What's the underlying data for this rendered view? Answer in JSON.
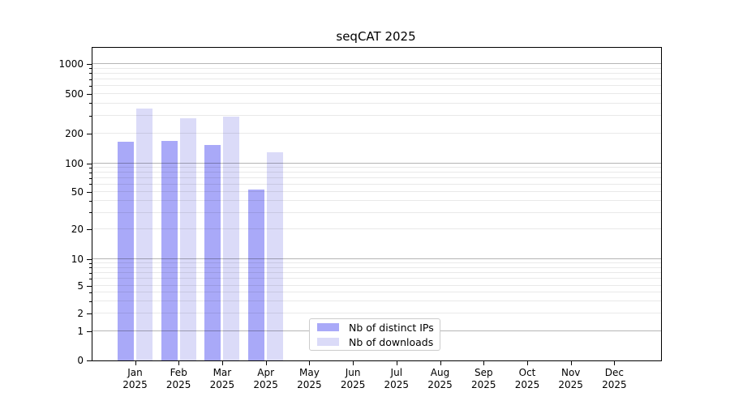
{
  "chart_data": {
    "type": "bar",
    "title": "seqCAT 2025",
    "xlabel": "",
    "ylabel": "",
    "y_scale": "symlog (linear 0-1, log above 1)",
    "ylim": [
      0,
      1450
    ],
    "y_ticks": [
      0,
      1,
      2,
      5,
      10,
      20,
      50,
      100,
      200,
      500,
      1000
    ],
    "grid": "horizontal, major decades (1,10,100,1000) darker + faint log minors, drawn over bars",
    "legend_position": "lower center",
    "categories": [
      {
        "month": "Jan",
        "year": "2025"
      },
      {
        "month": "Feb",
        "year": "2025"
      },
      {
        "month": "Mar",
        "year": "2025"
      },
      {
        "month": "Apr",
        "year": "2025"
      },
      {
        "month": "May",
        "year": "2025"
      },
      {
        "month": "Jun",
        "year": "2025"
      },
      {
        "month": "Jul",
        "year": "2025"
      },
      {
        "month": "Aug",
        "year": "2025"
      },
      {
        "month": "Sep",
        "year": "2025"
      },
      {
        "month": "Oct",
        "year": "2025"
      },
      {
        "month": "Nov",
        "year": "2025"
      },
      {
        "month": "Dec",
        "year": "2025"
      }
    ],
    "series": [
      {
        "name": "Nb of distinct IPs",
        "color": "#a9a9f8",
        "values": [
          166,
          170,
          155,
          53,
          null,
          null,
          null,
          null,
          null,
          null,
          null,
          null
        ]
      },
      {
        "name": "Nb of downloads",
        "color": "#dbdbf8",
        "values": [
          360,
          285,
          295,
          130,
          null,
          null,
          null,
          null,
          null,
          null,
          null,
          null
        ]
      }
    ]
  }
}
